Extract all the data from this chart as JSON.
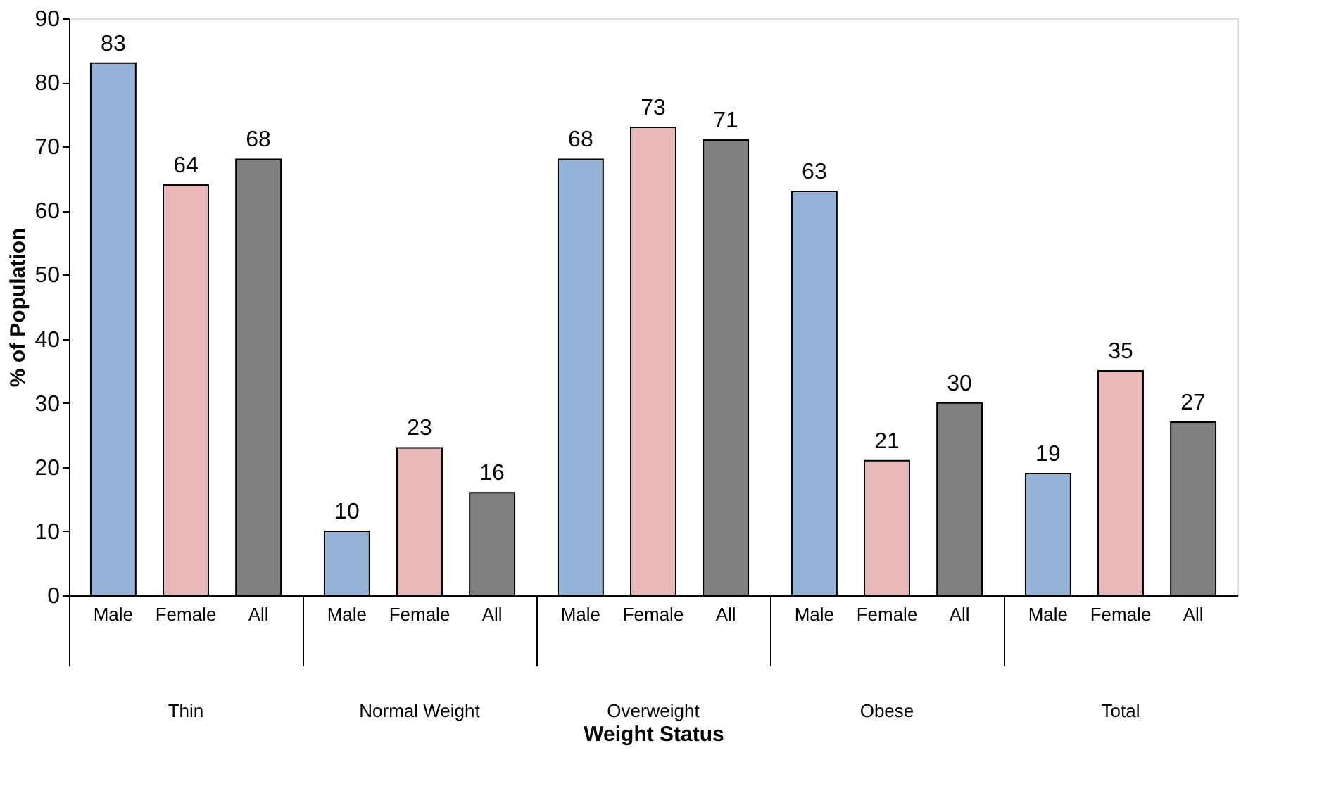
{
  "chart_data": {
    "type": "bar",
    "categories": [
      "Thin",
      "Normal Weight",
      "Overweight",
      "Obese",
      "Total"
    ],
    "series": [
      {
        "name": "Male",
        "color": "#95b3d7",
        "values": [
          83,
          10,
          68,
          63,
          19
        ]
      },
      {
        "name": "Female",
        "color": "#e6b9b8",
        "values": [
          64,
          23,
          73,
          21,
          35
        ]
      },
      {
        "name": "All",
        "color": "#7f7f7f",
        "values": [
          68,
          16,
          71,
          30,
          27
        ]
      }
    ],
    "ylim": [
      0,
      90
    ],
    "yticks": [
      0,
      10,
      20,
      30,
      40,
      50,
      60,
      70,
      80,
      90
    ],
    "xlabel": "Weight Status",
    "ylabel": "% of Population",
    "data_labels": true,
    "grid": false,
    "legend": false
  }
}
